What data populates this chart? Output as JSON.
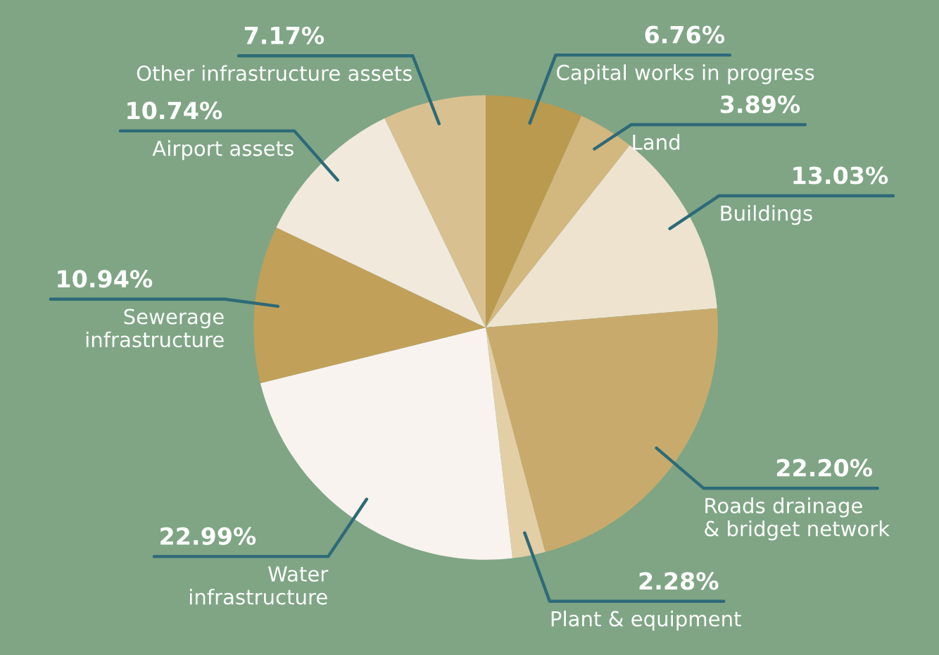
{
  "chart_data": {
    "type": "pie",
    "categories": [
      "Capital works in progress",
      "Land",
      "Buildings",
      "Roads drainage\n& bridget network",
      "Plant & equipment",
      "Water\ninfrastructure",
      "Sewerage\ninfrastructure",
      "Airport assets",
      "Other infrastructure assets"
    ],
    "values": [
      6.76,
      3.89,
      13.03,
      22.2,
      2.28,
      22.99,
      10.94,
      10.74,
      7.17
    ],
    "colors": [
      "#b99a4e",
      "#d2b77f",
      "#ede3cf",
      "#c8ab6c",
      "#e3cfa6",
      "#f8f3ee",
      "#c1a05a",
      "#f1e9dc",
      "#d8c091"
    ],
    "value_labels": [
      "6.76%",
      "3.89%",
      "13.03%",
      "22.20%",
      "2.28%",
      "22.99%",
      "10.94%",
      "10.74%",
      "7.17%"
    ],
    "legend": false
  }
}
